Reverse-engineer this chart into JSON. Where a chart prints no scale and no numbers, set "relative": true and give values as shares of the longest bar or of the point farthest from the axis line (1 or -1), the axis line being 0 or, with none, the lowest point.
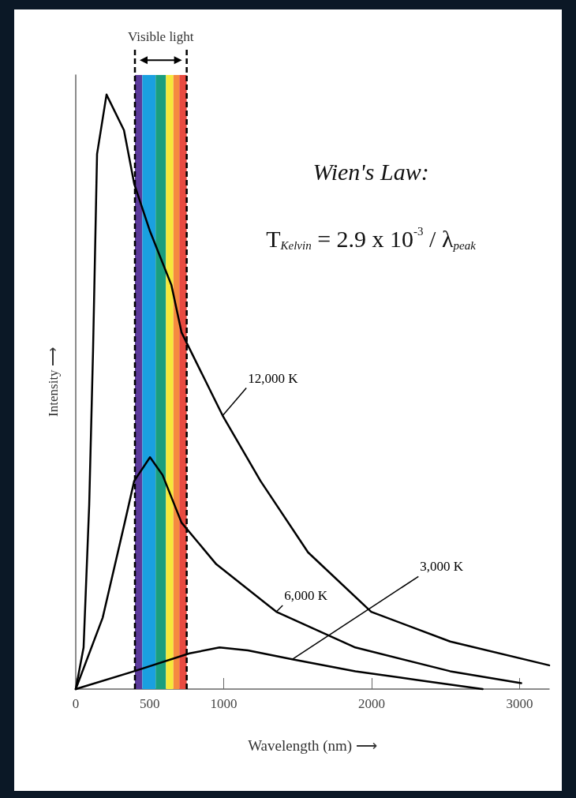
{
  "chart_data": {
    "type": "line",
    "relative": true,
    "xlabel": "Wavelength (nm) ⟶",
    "ylabel": "Intensity ⟶",
    "xlim": [
      0,
      3200
    ],
    "xticks": [
      0,
      500,
      1000,
      2000,
      3000
    ],
    "grid": false,
    "marker": "none",
    "line_style": "solid",
    "series": [
      {
        "name": "12,000 K",
        "color": "#000000",
        "x": [
          0,
          53,
          91,
          117,
          144,
          208,
          326,
          395,
          502,
          646,
          715,
          993,
          1249,
          1570,
          1997,
          2531,
          3200
        ],
        "values": [
          0,
          0.07,
          0.31,
          0.57,
          0.9,
          1.0,
          0.94,
          0.85,
          0.77,
          0.68,
          0.6,
          0.46,
          0.35,
          0.23,
          0.13,
          0.08,
          0.04
        ]
      },
      {
        "name": "6,000 K",
        "color": "#000000",
        "x": [
          0,
          182,
          331,
          395,
          502,
          587,
          715,
          950,
          1356,
          1890,
          2531,
          3011
        ],
        "values": [
          0,
          0.12,
          0.28,
          0.35,
          0.39,
          0.36,
          0.28,
          0.21,
          0.13,
          0.07,
          0.03,
          0.01
        ]
      },
      {
        "name": "3,000 K",
        "color": "#000000",
        "x": [
          0,
          395,
          769,
          972,
          1164,
          1463,
          1890,
          2317,
          2750
        ],
        "values": [
          0,
          0.03,
          0.06,
          0.07,
          0.065,
          0.05,
          0.03,
          0.015,
          0
        ]
      }
    ],
    "bands": [
      {
        "axis": "x",
        "from": 400,
        "to": 450,
        "color": "#5b3a9a"
      },
      {
        "axis": "x",
        "from": 450,
        "to": 540,
        "color": "#1aa0e0"
      },
      {
        "axis": "x",
        "from": 540,
        "to": 610,
        "color": "#1a9e7e"
      },
      {
        "axis": "x",
        "from": 610,
        "to": 660,
        "color": "#f5e83a"
      },
      {
        "axis": "x",
        "from": 660,
        "to": 700,
        "color": "#f58a40"
      },
      {
        "axis": "x",
        "from": 700,
        "to": 750,
        "color": "#e84a40"
      }
    ],
    "ref_lines": [
      {
        "axis": "x",
        "value": 400,
        "line_style": "dashed",
        "color": "#000000"
      },
      {
        "axis": "x",
        "value": 750,
        "line_style": "dashed",
        "color": "#000000"
      }
    ],
    "annotations": [
      "Visible light",
      "Wien's Law:",
      "T$_{Kelvin}$ = 2.9 x 10$^{-3}$ / λ$_{peak}$"
    ]
  }
}
